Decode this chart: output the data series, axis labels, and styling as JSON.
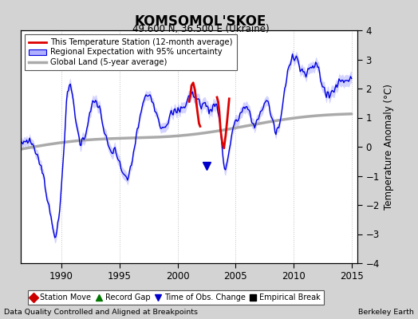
{
  "title": "KOMSOMOL'SKOE",
  "subtitle": "49.600 N, 36.500 E (Ukraine)",
  "ylabel": "Temperature Anomaly (°C)",
  "xlabel_left": "Data Quality Controlled and Aligned at Breakpoints",
  "xlabel_right": "Berkeley Earth",
  "ylim": [
    -4,
    4
  ],
  "xlim": [
    1986.5,
    2015.5
  ],
  "xticks": [
    1990,
    1995,
    2000,
    2005,
    2010,
    2015
  ],
  "yticks": [
    -4,
    -3,
    -2,
    -1,
    0,
    1,
    2,
    3,
    4
  ],
  "background_color": "#d3d3d3",
  "plot_background_color": "#ffffff",
  "grid_color": "#c0c0c0",
  "blue_line_color": "#0000dd",
  "blue_fill_color": "#b0b0ff",
  "red_line_color": "#dd0000",
  "gray_line_color": "#aaaaaa",
  "legend_item0": "This Temperature Station (12-month average)",
  "legend_item1": "Regional Expectation with 95% uncertainty",
  "legend_item2": "Global Land (5-year average)",
  "bottom_legend": [
    {
      "label": "Station Move",
      "color": "#cc0000",
      "marker": "D"
    },
    {
      "label": "Record Gap",
      "color": "#007700",
      "marker": "^"
    },
    {
      "label": "Time of Obs. Change",
      "color": "#0000cc",
      "marker": "v"
    },
    {
      "label": "Empirical Break",
      "color": "#000000",
      "marker": "s"
    }
  ],
  "toc_x": 2002.5,
  "toc_y": -0.65
}
